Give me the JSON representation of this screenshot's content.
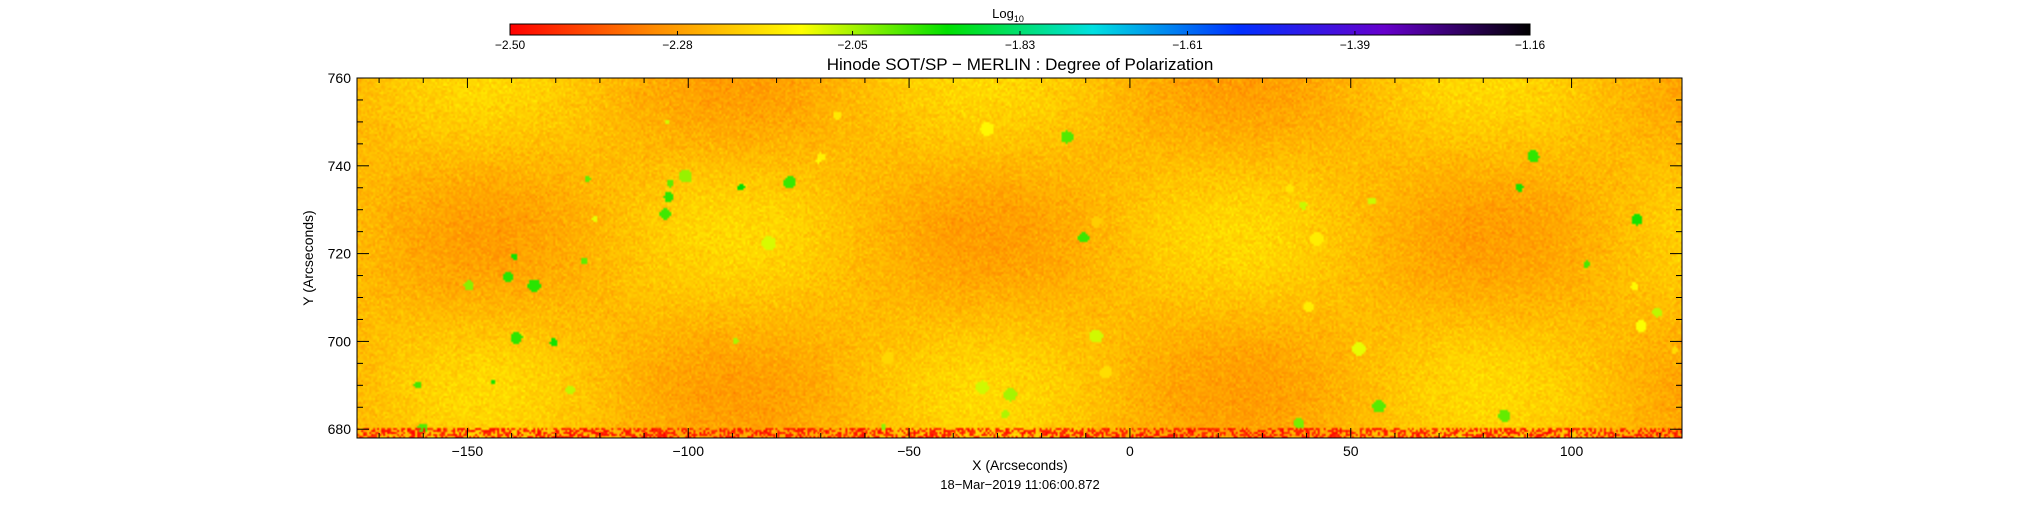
{
  "chart_data": {
    "type": "heatmap",
    "title": "Hinode SOT/SP − MERLIN : Degree of Polarization",
    "xlabel": "X (Arcseconds)",
    "ylabel": "Y (Arcseconds)",
    "xlim": [
      -175,
      125
    ],
    "ylim": [
      678,
      760
    ],
    "x_ticks": [
      -150,
      -100,
      -50,
      0,
      50,
      100
    ],
    "x_tick_labels": [
      "−150",
      "−100",
      "−50",
      "0",
      "50",
      "100"
    ],
    "y_ticks": [
      680,
      700,
      720,
      740,
      760
    ],
    "y_tick_labels": [
      "680",
      "700",
      "720",
      "740",
      "760"
    ],
    "timestamp": "18−Mar−2019 11:06:00.872",
    "colorbar": {
      "title_main": "Log",
      "title_sub": "10",
      "range": [
        -2.5,
        -1.16
      ],
      "ticks": [
        -2.5,
        -2.28,
        -2.05,
        -1.83,
        -1.61,
        -1.39,
        -1.16
      ],
      "tick_labels": [
        "−2.50",
        "−2.28",
        "−2.05",
        "−1.83",
        "−1.61",
        "−1.39",
        "−1.16"
      ],
      "colors": [
        "#ff0000",
        "#ff8c00",
        "#ffff00",
        "#00e000",
        "#00e0e0",
        "#0030ff",
        "#6600cc",
        "#000000"
      ]
    },
    "field": {
      "typical_range": [
        -2.38,
        -2.12
      ],
      "dominant_color": "#ff9900"
    }
  }
}
